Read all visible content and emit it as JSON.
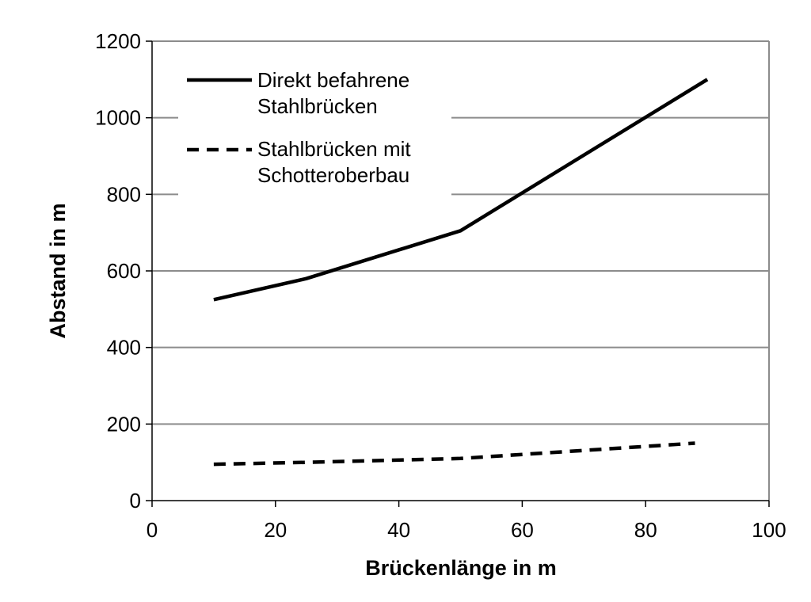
{
  "chart_data": {
    "type": "line",
    "title": "",
    "xlabel": "Brückenlänge in m",
    "ylabel": "Abstand in m",
    "xlim": [
      0,
      100
    ],
    "ylim": [
      0,
      1200
    ],
    "x_ticks": [
      "0",
      "20",
      "40",
      "60",
      "80",
      "100"
    ],
    "y_ticks": [
      "0",
      "200",
      "400",
      "600",
      "800",
      "1000",
      "1200"
    ],
    "grid": "horizontal",
    "legend_position": "top-left",
    "series": [
      {
        "name_lines": [
          "Direkt befahrene",
          "Stahlbrücken"
        ],
        "style": "solid",
        "color": "#000000",
        "points": [
          [
            10,
            525
          ],
          [
            25,
            580
          ],
          [
            50,
            705
          ],
          [
            90,
            1100
          ]
        ]
      },
      {
        "name_lines": [
          "Stahlbrücken mit",
          "Schotteroberbau"
        ],
        "style": "dashed",
        "color": "#000000",
        "points": [
          [
            10,
            95
          ],
          [
            25,
            100
          ],
          [
            50,
            110
          ],
          [
            88,
            150
          ]
        ]
      }
    ]
  }
}
